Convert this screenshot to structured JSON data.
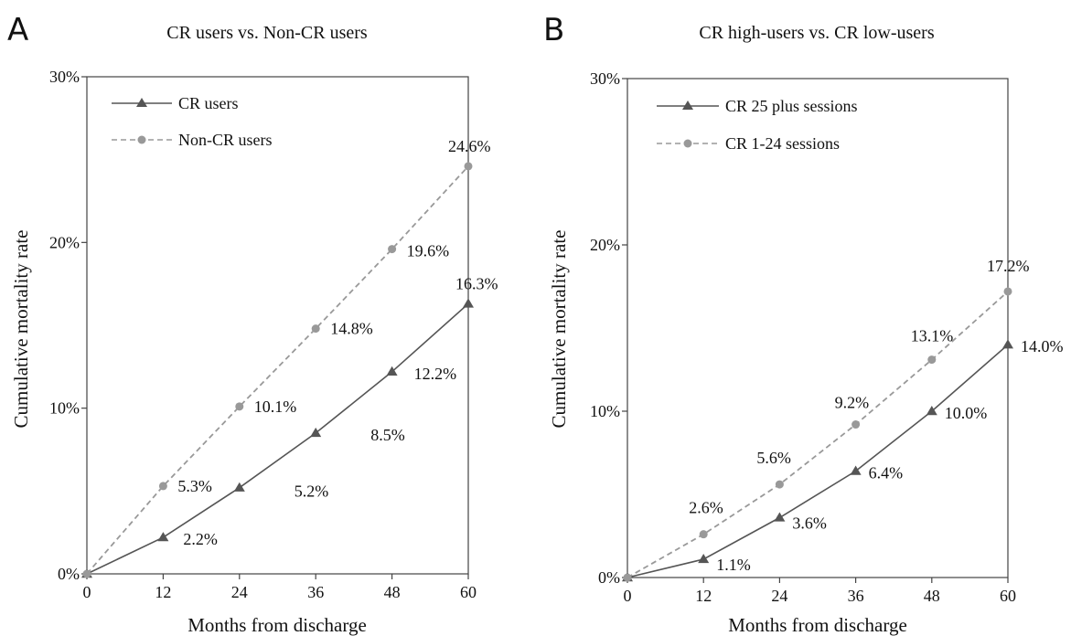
{
  "chart_data": [
    {
      "panel": "A",
      "type": "line",
      "title": "CR users vs. Non-CR users",
      "xlabel": "Months from discharge",
      "ylabel": "Cumulative mortality rate",
      "x": [
        0,
        12,
        24,
        36,
        48,
        60
      ],
      "xlim": [
        0,
        60
      ],
      "ylim": [
        0,
        30
      ],
      "x_ticks": [
        "0",
        "12",
        "24",
        "36",
        "48",
        "60"
      ],
      "y_ticks": [
        "0%",
        "10%",
        "20%",
        "30%"
      ],
      "legend_position": "top-left",
      "series": [
        {
          "name": "CR users",
          "style": "solid",
          "marker": "triangle",
          "color": "#555555",
          "values": [
            0,
            2.2,
            5.2,
            8.5,
            12.2,
            16.3
          ],
          "labels": [
            "",
            "2.2%",
            "5.2%",
            "8.5%",
            "12.2%",
            "16.3%"
          ]
        },
        {
          "name": "Non-CR users",
          "style": "dashed",
          "marker": "diamond",
          "color": "#999999",
          "values": [
            0,
            5.3,
            10.1,
            14.8,
            19.6,
            24.6
          ],
          "labels": [
            "",
            "5.3%",
            "10.1%",
            "14.8%",
            "19.6%",
            "24.6%"
          ]
        }
      ]
    },
    {
      "panel": "B",
      "type": "line",
      "title": "CR high-users vs. CR low-users",
      "xlabel": "Months from discharge",
      "ylabel": "Cumulative mortality rate",
      "x": [
        0,
        12,
        24,
        36,
        48,
        60
      ],
      "xlim": [
        0,
        60
      ],
      "ylim": [
        0,
        30
      ],
      "x_ticks": [
        "0",
        "12",
        "24",
        "36",
        "48",
        "60"
      ],
      "y_ticks": [
        "0%",
        "10%",
        "20%",
        "30%"
      ],
      "legend_position": "top-left",
      "series": [
        {
          "name": "CR 25 plus sessions",
          "style": "solid",
          "marker": "triangle",
          "color": "#555555",
          "values": [
            0,
            1.1,
            3.6,
            6.4,
            10.0,
            14.0
          ],
          "labels": [
            "",
            "1.1%",
            "3.6%",
            "6.4%",
            "10.0%",
            "14.0%"
          ]
        },
        {
          "name": "CR 1-24 sessions",
          "style": "dashed",
          "marker": "diamond",
          "color": "#999999",
          "values": [
            0,
            2.6,
            5.6,
            9.2,
            13.1,
            17.2
          ],
          "labels": [
            "",
            "2.6%",
            "5.6%",
            "9.2%",
            "13.1%",
            "17.2%"
          ]
        }
      ]
    }
  ]
}
